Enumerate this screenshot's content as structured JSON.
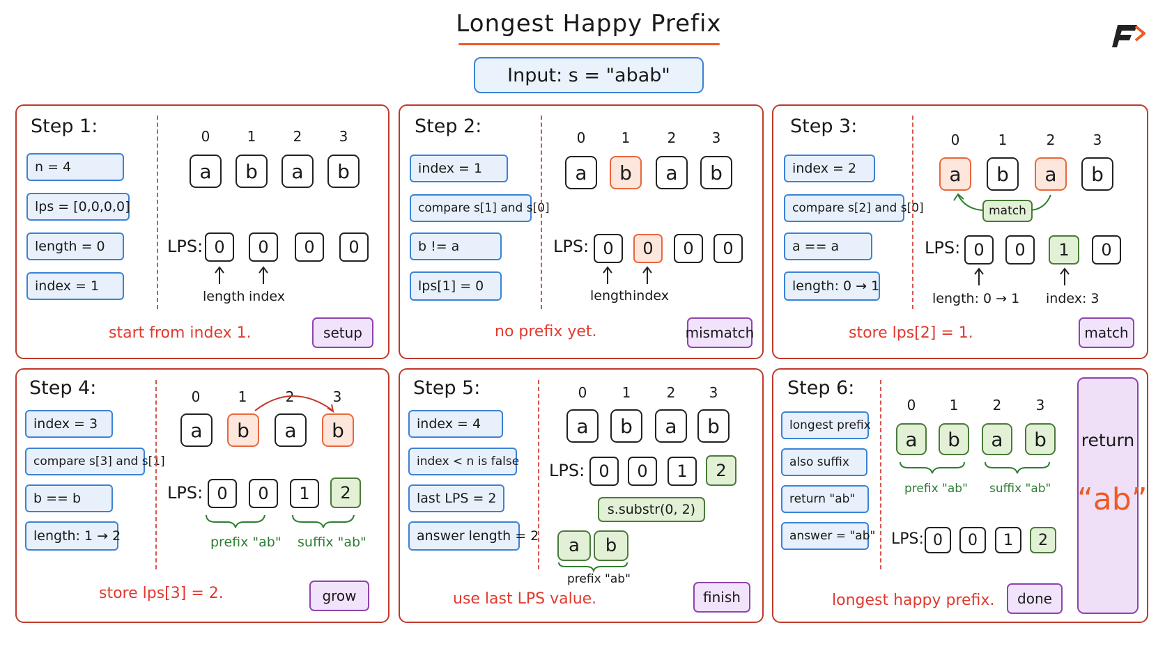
{
  "title": "Longest Happy Prefix",
  "input": "Input:  s = \"abab\"",
  "colors": {
    "accent": "#ee5a24",
    "panel_border": "#c0392b",
    "var_box": "#3b82d6",
    "tag": "#8e44ad",
    "match": "#4a7a3a",
    "mismatch": "#e8673c"
  },
  "indices": [
    "0",
    "1",
    "2",
    "3"
  ],
  "string_chars": [
    "a",
    "b",
    "a",
    "b"
  ],
  "lps_label": "LPS:",
  "steps": [
    {
      "title": "Step 1:",
      "vars": [
        "n = 4",
        "lps = [0,0,0,0]",
        "length = 0",
        "index = 1"
      ],
      "lps": [
        "0",
        "0",
        "0",
        "0"
      ],
      "pointers": [
        "length",
        "index"
      ],
      "caption": "start from index 1.",
      "tag": "setup"
    },
    {
      "title": "Step 2:",
      "vars": [
        "index = 1",
        "compare s[1] and s[0]",
        "b != a",
        "lps[1] = 0"
      ],
      "lps": [
        "0",
        "0",
        "0",
        "0"
      ],
      "pointers": [
        "length",
        "index"
      ],
      "caption": "no prefix yet.",
      "tag": "mismatch"
    },
    {
      "title": "Step 3:",
      "vars": [
        "index = 2",
        "compare s[2] and s[0]",
        "a == a",
        "length: 0 → 1"
      ],
      "lps": [
        "0",
        "0",
        "1",
        "0"
      ],
      "match_label": "match",
      "pointers": [
        "length: 0 → 1",
        "index: 3"
      ],
      "caption": "store lps[2] = 1.",
      "tag": "match"
    },
    {
      "title": "Step 4:",
      "vars": [
        "index = 3",
        "compare s[3] and s[1]",
        "b == b",
        "length: 1 → 2"
      ],
      "lps": [
        "0",
        "0",
        "1",
        "2"
      ],
      "braces": [
        "prefix \"ab\"",
        "suffix \"ab\""
      ],
      "caption": "store lps[3] = 2.",
      "tag": "grow"
    },
    {
      "title": "Step 5:",
      "vars": [
        "index = 4",
        "index < n is false",
        "last LPS = 2",
        "answer length = 2"
      ],
      "lps": [
        "0",
        "0",
        "1",
        "2"
      ],
      "substr": "s.substr(0, 2)",
      "result_chars": [
        "a",
        "b"
      ],
      "result_label": "prefix \"ab\"",
      "caption": "use last LPS value.",
      "tag": "finish"
    },
    {
      "title": "Step 6:",
      "vars": [
        "longest prefix",
        "also suffix",
        "return \"ab\"",
        "answer = \"ab\""
      ],
      "lps": [
        "0",
        "0",
        "1",
        "2"
      ],
      "braces": [
        "prefix \"ab\"",
        "suffix \"ab\""
      ],
      "caption": "longest happy prefix.",
      "tag": "done",
      "return_word": "return",
      "return_value": "“ab”"
    }
  ]
}
